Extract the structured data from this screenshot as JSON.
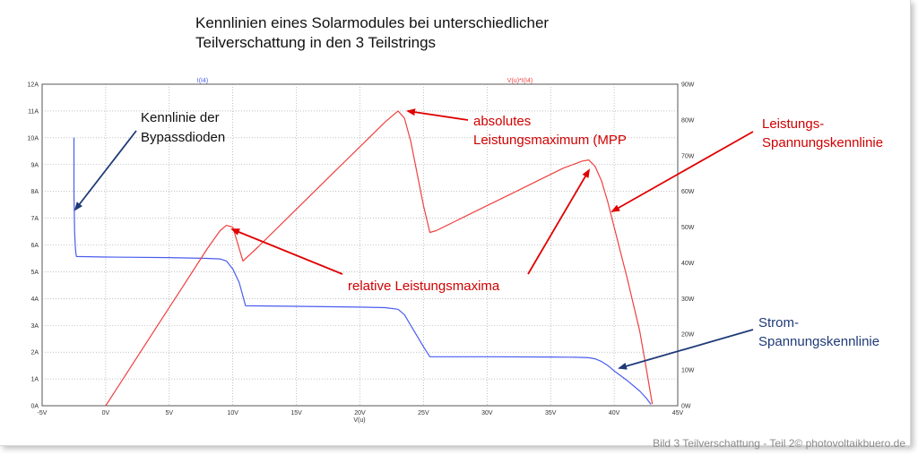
{
  "chart_data": {
    "type": "line",
    "title_lines": [
      "Kennlinien eines Solarmodules bei unterschiedlicher",
      "Teilverschattung in den 3 Teilstrings"
    ],
    "xlabel": "V(u)",
    "xlim": [
      -5,
      45
    ],
    "x_ticks": [
      "-5V",
      "0V",
      "5V",
      "10V",
      "15V",
      "20V",
      "25V",
      "30V",
      "35V",
      "40V",
      "45V"
    ],
    "y_left_lim": [
      0,
      12
    ],
    "y_left_ticks": [
      "0A",
      "1A",
      "2A",
      "3A",
      "4A",
      "5A",
      "6A",
      "7A",
      "8A",
      "9A",
      "10A",
      "11A",
      "12A"
    ],
    "y_right_lim": [
      0,
      90
    ],
    "y_right_ticks": [
      "0W",
      "10W",
      "20W",
      "30W",
      "40W",
      "50W",
      "60W",
      "70W",
      "80W",
      "90W"
    ],
    "grid": true,
    "series": [
      {
        "name": "I(I4)",
        "axis": "left",
        "color": "#4a5cf0",
        "x": [
          -2.5,
          -2.5,
          -2.45,
          -2.4,
          -2.35,
          -2.3,
          0,
          5,
          8,
          9,
          9.5,
          10,
          10.5,
          11,
          15,
          20,
          22,
          23,
          23.5,
          24,
          24.5,
          25,
          25.5,
          30,
          35,
          37,
          38,
          38.5,
          39,
          39.5,
          40,
          41,
          42,
          42.5,
          42.9
        ],
        "y": [
          10.0,
          8.0,
          6.5,
          6.0,
          5.7,
          5.57,
          5.55,
          5.53,
          5.5,
          5.48,
          5.4,
          5.1,
          4.6,
          3.73,
          3.71,
          3.68,
          3.66,
          3.6,
          3.4,
          3.0,
          2.6,
          2.2,
          1.83,
          1.83,
          1.82,
          1.81,
          1.79,
          1.75,
          1.65,
          1.5,
          1.3,
          0.95,
          0.55,
          0.3,
          0.05
        ]
      },
      {
        "name": "V(u)*I(I4)",
        "axis": "right",
        "color": "#f04040",
        "x": [
          0,
          2,
          4,
          6,
          8,
          9,
          9.5,
          10,
          10.5,
          10.8,
          12,
          15,
          18,
          20,
          22,
          23,
          23.5,
          24,
          24.5,
          25,
          25.5,
          26,
          28,
          30,
          32,
          34,
          36,
          37.5,
          38,
          38.5,
          39,
          39.5,
          40,
          41,
          42,
          42.5,
          43
        ],
        "y": [
          0,
          11,
          22,
          33,
          44,
          49,
          50.5,
          50.0,
          44,
          40.5,
          44.5,
          55,
          65.5,
          72.5,
          79.5,
          82.5,
          80.5,
          74,
          65,
          56,
          48.5,
          49,
          52.5,
          56,
          59.5,
          63,
          66.5,
          68.5,
          68.8,
          67,
          63,
          57,
          50,
          36,
          21,
          11,
          0.5
        ]
      }
    ],
    "annotations": [
      {
        "lines": [
          "Kennlinie der",
          "Bypassdioden"
        ],
        "color": "#111111"
      },
      {
        "lines": [
          "absolutes",
          "Leistungsmaximum (MPP"
        ],
        "color": "#d00000"
      },
      {
        "lines": [
          "Leistungs-",
          "Spannungskennlinie"
        ],
        "color": "#d00000"
      },
      {
        "lines": [
          "relative Leistungsmaxima"
        ],
        "color": "#d00000"
      },
      {
        "lines": [
          "Strom-",
          "Spannungskennlinie"
        ],
        "color": "#1f3a78"
      }
    ]
  },
  "caption": "Bild 3 Teilverschattung - Teil 2© photovoltaikbuero.de"
}
